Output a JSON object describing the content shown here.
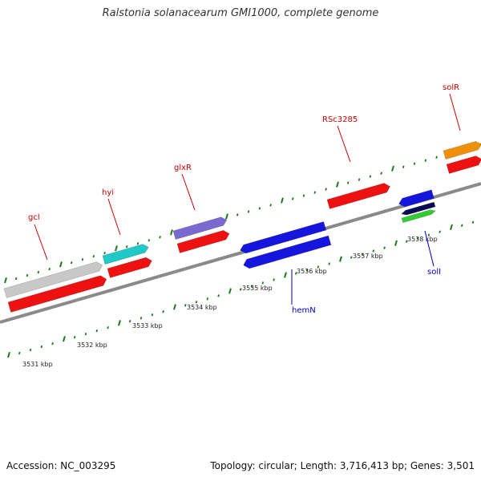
{
  "title": "Ralstonia solanacearum GMI1000, complete genome",
  "footer": {
    "accession": "Accession: NC_003295",
    "summary": "Topology: circular; Length: 3,716,413 bp; Genes: 3,501"
  },
  "colors": {
    "forward_label": "#cc0000",
    "reverse_label": "#0000cc",
    "tick_mark": "#1a7a1a",
    "backbone": "#808080"
  },
  "scale_ticks": [
    "3531 kbp",
    "3532 kbp",
    "3533 kbp",
    "3534 kbp",
    "3535 kbp",
    "3536 kbp",
    "3537 kbp",
    "3538 kbp"
  ],
  "gene_labels": [
    {
      "text": "gcl",
      "strand": "forward"
    },
    {
      "text": "hyi",
      "strand": "forward"
    },
    {
      "text": "glxR",
      "strand": "forward"
    },
    {
      "text": "RSc3285",
      "strand": "forward"
    },
    {
      "text": "solR",
      "strand": "forward"
    },
    {
      "text": "hemN",
      "strand": "reverse"
    },
    {
      "text": "solI",
      "strand": "reverse"
    }
  ],
  "features": [
    {
      "name": "gcl-gene",
      "color": "#c8c8c8",
      "track": "forward-outer"
    },
    {
      "name": "gcl-cds",
      "color": "#ee1111",
      "track": "forward-inner"
    },
    {
      "name": "hyi-gene",
      "color": "#20c8c8",
      "track": "forward-outer"
    },
    {
      "name": "hyi-cds",
      "color": "#ee1111",
      "track": "forward-inner"
    },
    {
      "name": "glxR-gene",
      "color": "#7a6ad0",
      "track": "forward-outer"
    },
    {
      "name": "glxR-cds",
      "color": "#ee1111",
      "track": "forward-inner"
    },
    {
      "name": "RSc3285-cds",
      "color": "#ee1111",
      "track": "forward-inner"
    },
    {
      "name": "solR-gene",
      "color": "#f0900a",
      "track": "forward-outer"
    },
    {
      "name": "solR-cds",
      "color": "#ee1111",
      "track": "forward-inner"
    },
    {
      "name": "hemN-gene",
      "color": "#1515dd",
      "track": "reverse-inner"
    },
    {
      "name": "hemN-cds",
      "color": "#1515dd",
      "track": "reverse-outer"
    },
    {
      "name": "solI-gene",
      "color": "#1515dd",
      "track": "reverse-inner"
    },
    {
      "name": "solI-cds-a",
      "color": "#0a0a55",
      "track": "reverse-outer"
    },
    {
      "name": "solI-cds-b",
      "color": "#33cc33",
      "track": "reverse-outer"
    }
  ]
}
